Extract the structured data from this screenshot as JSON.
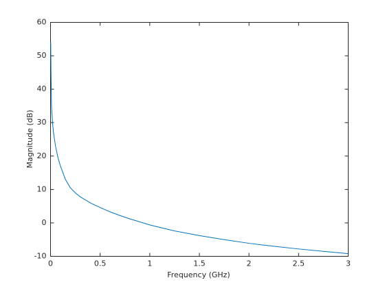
{
  "chart_data": {
    "type": "line",
    "xlabel": "Frequency (GHz)",
    "ylabel": "Magnitude (dB)",
    "x": [
      0.002,
      0.005,
      0.01,
      0.02,
      0.03,
      0.05,
      0.075,
      0.1,
      0.15,
      0.2,
      0.25,
      0.3,
      0.4,
      0.5,
      0.6,
      0.7,
      0.8,
      0.9,
      1,
      1.25,
      1.5,
      1.75,
      2,
      2.25,
      2.5,
      2.75,
      3
    ],
    "series": [
      {
        "color": "#0072bd",
        "values": [
          54,
          45,
          35,
          30,
          27,
          23,
          19.5,
          17,
          13,
          10.5,
          9,
          7.8,
          6,
          4.6,
          3.3,
          2.2,
          1.2,
          0.3,
          -0.6,
          -2.4,
          -3.8,
          -5,
          -6.1,
          -7,
          -7.8,
          -8.5,
          -9.2
        ]
      }
    ],
    "xlim": [
      0,
      3
    ],
    "xticks": [
      0,
      0.5,
      1,
      1.5,
      2,
      2.5,
      3
    ],
    "ylim": [
      -10,
      60
    ],
    "yticks": [
      -10,
      0,
      10,
      20,
      30,
      40,
      50,
      60
    ],
    "grid": false
  }
}
